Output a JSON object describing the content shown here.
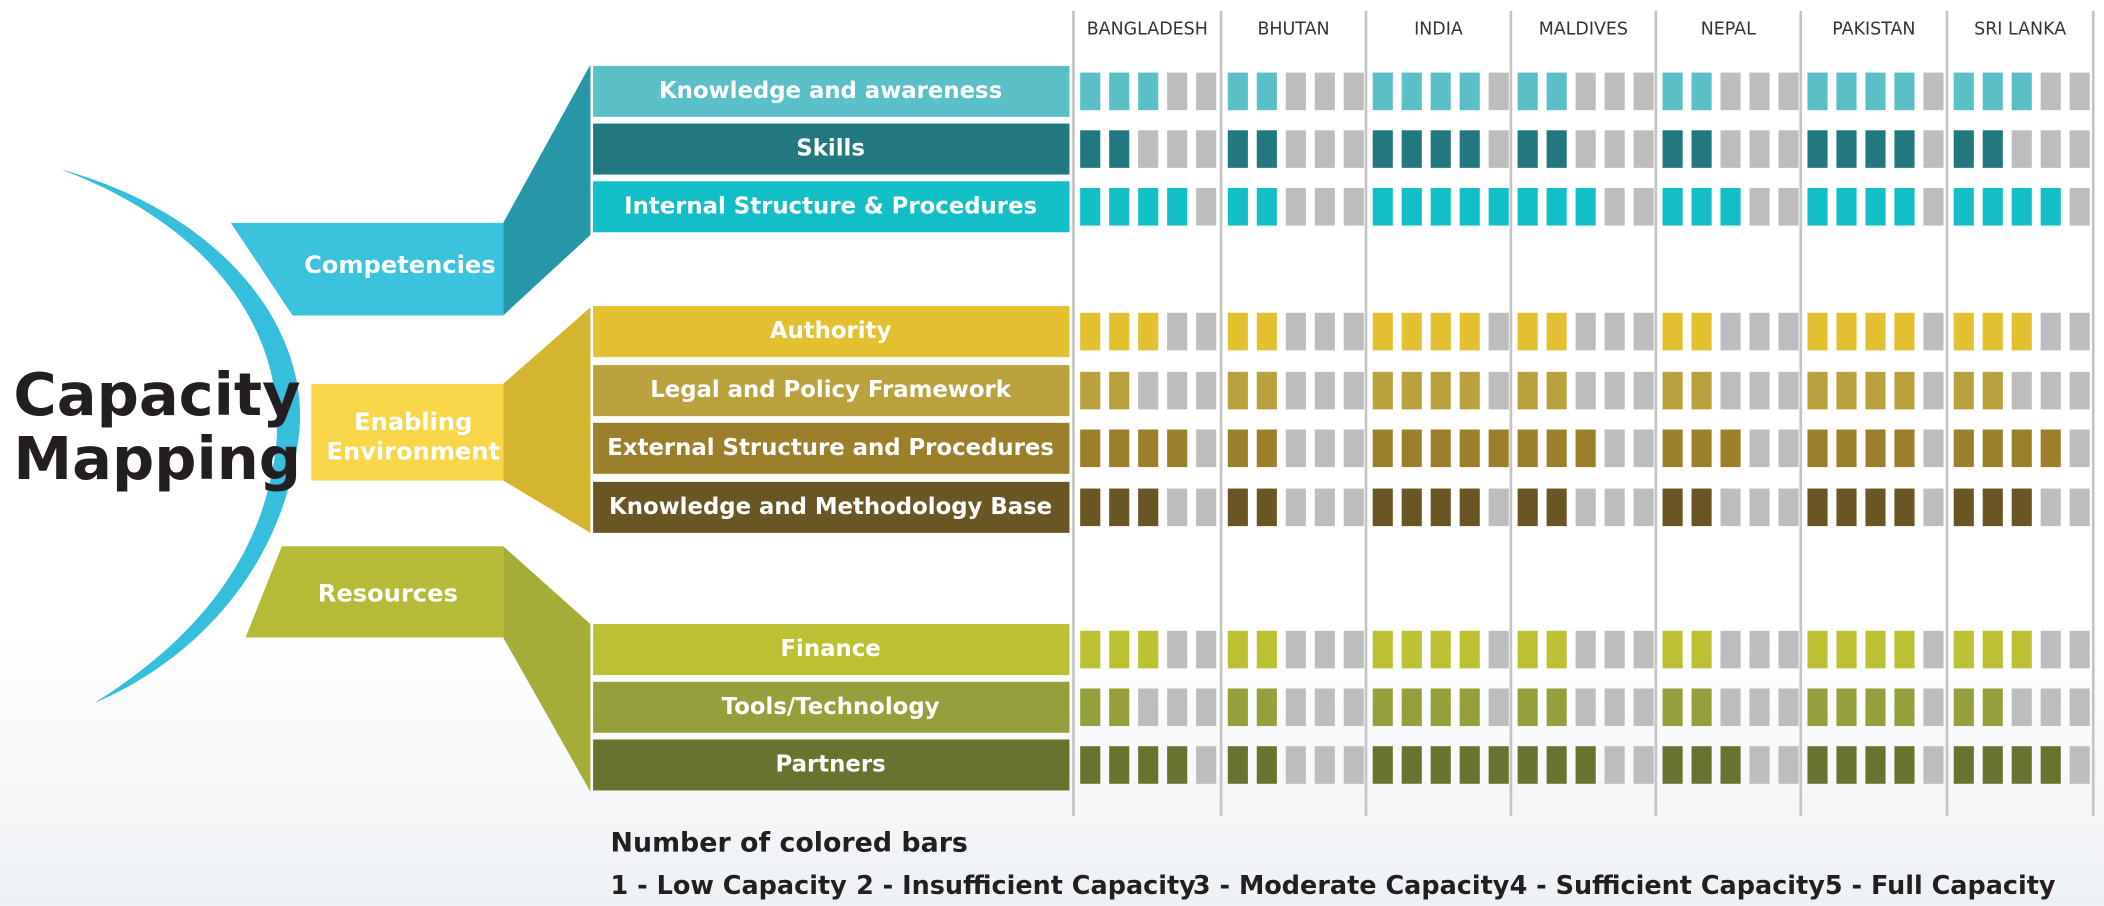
{
  "title": [
    "Capacity",
    "Mapping"
  ],
  "countries": [
    "BANGLADESH",
    "BHUTAN",
    "INDIA",
    "MALDIVES",
    "NEPAL",
    "PAKISTAN",
    "SRI LANKA"
  ],
  "groups": [
    {
      "label": [
        "Competencies"
      ],
      "color": "#3bc3de",
      "connector": "#2797a8",
      "rows": [
        {
          "label": "Knowledge and awareness",
          "color": "#5bbfc8",
          "scores": [
            3,
            2,
            4,
            2,
            2,
            4,
            3
          ]
        },
        {
          "label": "Skills",
          "color": "#22787e",
          "scores": [
            2,
            2,
            4,
            2,
            2,
            4,
            2
          ]
        },
        {
          "label": "Internal Structure & Procedures",
          "color": "#12bfc6",
          "scores": [
            4,
            2,
            5,
            3,
            3,
            4,
            4
          ]
        }
      ]
    },
    {
      "label": [
        "Enabling",
        "Environment"
      ],
      "color": "#f7d64a",
      "connector": "#d4b52f",
      "rows": [
        {
          "label": "Authority",
          "color": "#e3c030",
          "scores": [
            3,
            2,
            4,
            2,
            2,
            4,
            3
          ]
        },
        {
          "label": "Legal and Policy Framework",
          "color": "#b9a23e",
          "scores": [
            2,
            2,
            4,
            2,
            2,
            4,
            2
          ]
        },
        {
          "label": "External Structure and Procedures",
          "color": "#9c7f2b",
          "scores": [
            4,
            2,
            5,
            3,
            3,
            4,
            4
          ]
        },
        {
          "label": "Knowledge and Methodology Base",
          "color": "#6a5624",
          "scores": [
            3,
            2,
            4,
            2,
            2,
            4,
            3
          ]
        }
      ]
    },
    {
      "label": [
        "Resources"
      ],
      "color": "#b5bb36",
      "connector": "#a5ad38",
      "rows": [
        {
          "label": "Finance",
          "color": "#bcc033",
          "scores": [
            3,
            2,
            4,
            2,
            2,
            4,
            3
          ]
        },
        {
          "label": "Tools/Technology",
          "color": "#95a03c",
          "scores": [
            2,
            2,
            4,
            2,
            2,
            4,
            2
          ]
        },
        {
          "label": "Partners",
          "color": "#6a7230",
          "scores": [
            4,
            2,
            5,
            3,
            3,
            4,
            4
          ]
        }
      ]
    }
  ],
  "legend": {
    "title": "Number of colored bars",
    "items": [
      "1 - Low Capacity",
      "2 - Insufficient Capacity",
      "3 - Moderate Capacity",
      "4 - Sufficient Capacity",
      "5 - Full Capacity"
    ]
  }
}
